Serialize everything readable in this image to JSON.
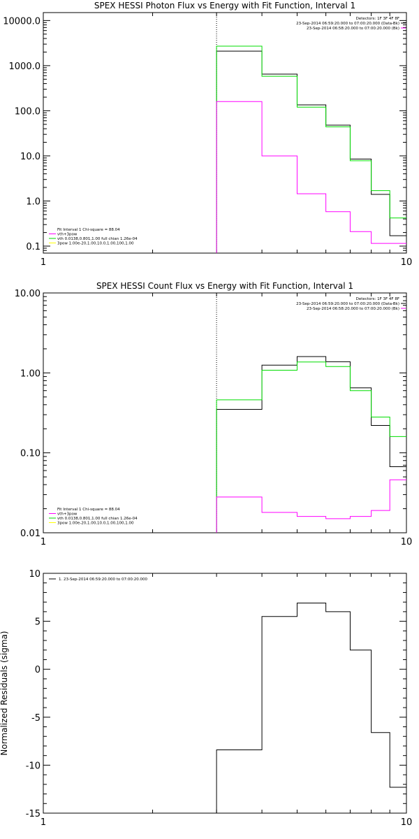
{
  "colors": {
    "data": "#000000",
    "total": "#ff00ff",
    "vth": "#00dd00",
    "bpow": "#ffff00",
    "frame": "#000000"
  },
  "chart_data": [
    {
      "type": "line",
      "title": "SPEX HESSI Photon Flux vs Energy with Fit Function, Interval 1",
      "xlim": [
        1,
        10
      ],
      "x_scale": "log",
      "ylim": [
        0.07,
        15000
      ],
      "y_scale": "log",
      "x_ticks": [
        {
          "value": 1,
          "label": "1"
        },
        {
          "value": 10,
          "label": "10"
        }
      ],
      "y_ticks": [
        {
          "value": 10000,
          "label": "10000.0"
        },
        {
          "value": 1000,
          "label": "1000.0"
        },
        {
          "value": 100,
          "label": "100.0"
        },
        {
          "value": 10,
          "label": "10.0"
        },
        {
          "value": 1,
          "label": "1.0"
        },
        {
          "value": 0.1,
          "label": "0.1"
        }
      ],
      "marker_line_x": 3.0,
      "legend_top": [
        "Detectors: 1F 3F 4F 8F",
        "23-Sep-2014 06:59:20.000 to 07:00:20.000 (Data-Bk)",
        "23-Sep-2014 06:58:20.000 to 07:00:20.000 (Bk)"
      ],
      "legend_bottom": [
        "Fit Interval 1   Chi-square = 88.04",
        "vth+3pow",
        "vth 0.0138,0.801,1.00  full chian 1.26e-04",
        "3pow 1.00e-20,1.00,10.0,1.00,100,1.00"
      ],
      "edges": [
        3.0,
        4.0,
        5.0,
        6.0,
        7.0,
        8.0,
        9.0,
        10.0
      ],
      "series": [
        {
          "name": "Data-Bk",
          "color_key": "data",
          "values": [
            2100,
            650,
            135,
            48,
            8.5,
            1.4,
            0.17
          ]
        },
        {
          "name": "vth",
          "color_key": "vth",
          "values": [
            2700,
            580,
            120,
            44,
            7.8,
            1.7,
            0.42
          ]
        },
        {
          "name": "Bk",
          "color_key": "total",
          "values": [
            160,
            10,
            1.45,
            0.58,
            0.21,
            0.115,
            0.115
          ]
        }
      ]
    },
    {
      "type": "line",
      "title": "SPEX HESSI Count Flux vs Energy with Fit Function, Interval 1",
      "xlim": [
        1,
        10
      ],
      "x_scale": "log",
      "ylim": [
        0.01,
        10
      ],
      "y_scale": "log",
      "x_ticks": [
        {
          "value": 1,
          "label": "1"
        },
        {
          "value": 10,
          "label": "10"
        }
      ],
      "y_ticks": [
        {
          "value": 10,
          "label": "10.00"
        },
        {
          "value": 1,
          "label": "1.00"
        },
        {
          "value": 0.1,
          "label": "0.10"
        },
        {
          "value": 0.01,
          "label": "0.01"
        }
      ],
      "marker_line_x": 3.0,
      "legend_top": [
        "Detectors: 1F 3F 4F 8F",
        "23-Sep-2014 06:59:20.000 to 07:00:20.000 (Data-Bk)",
        "23-Sep-2014 06:58:20.000 to 07:00:20.000 (Bk)"
      ],
      "legend_bottom": [
        "Fit Interval 1   Chi-square = 88.04",
        "vth+3pow",
        "vth 0.0138,0.801,1.00  full chian 1.26e-04",
        "3pow 1.00e-20,1.00,10.0,1.00,100,1.00"
      ],
      "edges": [
        3.0,
        4.0,
        5.0,
        6.0,
        7.0,
        8.0,
        9.0,
        10.0
      ],
      "series": [
        {
          "name": "Data-Bk",
          "color_key": "data",
          "values": [
            0.35,
            1.25,
            1.6,
            1.38,
            0.65,
            0.22,
            0.067
          ]
        },
        {
          "name": "vth",
          "color_key": "vth",
          "values": [
            0.46,
            1.08,
            1.37,
            1.2,
            0.6,
            0.28,
            0.16
          ]
        },
        {
          "name": "Bk",
          "color_key": "total",
          "values": [
            0.028,
            0.018,
            0.016,
            0.015,
            0.016,
            0.019,
            0.046
          ]
        }
      ]
    },
    {
      "type": "line",
      "title": "",
      "xlim": [
        1,
        10
      ],
      "x_scale": "log",
      "ylim": [
        -15,
        10
      ],
      "y_scale": "linear",
      "ylabel": "Normalized Residuals (sigma)",
      "x_ticks": [
        {
          "value": 1,
          "label": "1"
        },
        {
          "value": 10,
          "label": "10"
        }
      ],
      "y_ticks": [
        {
          "value": 10,
          "label": "10"
        },
        {
          "value": 5,
          "label": "5"
        },
        {
          "value": 0,
          "label": "0"
        },
        {
          "value": -5,
          "label": "-5"
        },
        {
          "value": -10,
          "label": "-10"
        },
        {
          "value": -15,
          "label": "-15"
        }
      ],
      "legend_top": [
        "1. 23-Sep-2014 06:59:20.000 to 07:00:20.000"
      ],
      "edges": [
        3.0,
        4.0,
        5.0,
        6.0,
        7.0,
        8.0,
        9.0,
        10.0
      ],
      "series": [
        {
          "name": "residuals",
          "color_key": "data",
          "values": [
            -8.4,
            5.5,
            6.9,
            6.0,
            2.0,
            -6.6,
            -12.3
          ]
        }
      ]
    }
  ]
}
